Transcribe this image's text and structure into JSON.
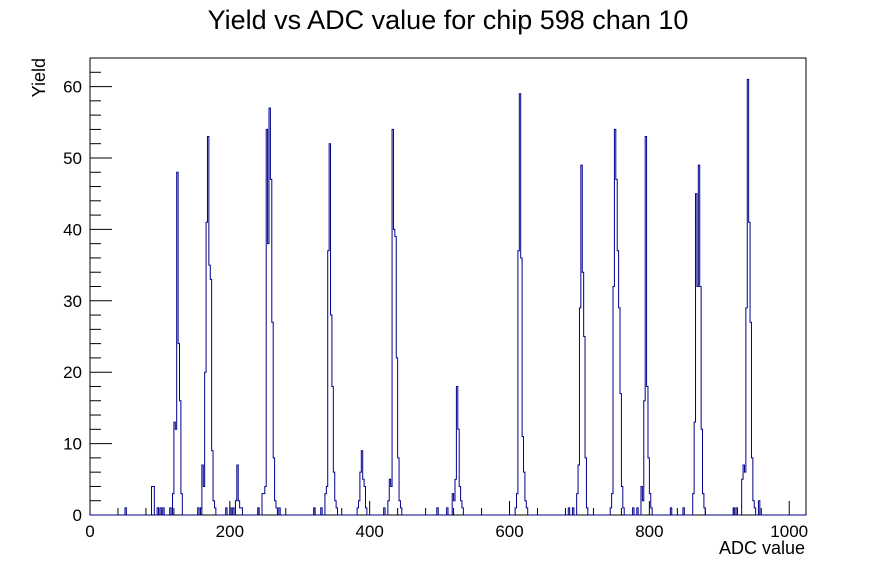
{
  "chart_data": {
    "type": "bar",
    "title": "Yield vs ADC value for chip 598 chan 10",
    "xlabel": "ADC value",
    "ylabel": "Yield",
    "xlim": [
      0,
      1024
    ],
    "ylim": [
      0,
      64
    ],
    "x_ticks": [
      0,
      200,
      400,
      600,
      800,
      1000
    ],
    "y_ticks": [
      0,
      10,
      20,
      30,
      40,
      50,
      60
    ],
    "grid": false,
    "legend": "none",
    "bin_width": 2,
    "color": "#00008b",
    "bins": [
      [
        50,
        1
      ],
      [
        88,
        4
      ],
      [
        90,
        4
      ],
      [
        96,
        1
      ],
      [
        100,
        1
      ],
      [
        104,
        1
      ],
      [
        114,
        1
      ],
      [
        118,
        3
      ],
      [
        120,
        13
      ],
      [
        122,
        12
      ],
      [
        124,
        48
      ],
      [
        126,
        24
      ],
      [
        128,
        16
      ],
      [
        130,
        3
      ],
      [
        154,
        1
      ],
      [
        158,
        1
      ],
      [
        160,
        7
      ],
      [
        162,
        4
      ],
      [
        164,
        20
      ],
      [
        166,
        41
      ],
      [
        168,
        53
      ],
      [
        170,
        35
      ],
      [
        172,
        33
      ],
      [
        174,
        9
      ],
      [
        176,
        2
      ],
      [
        178,
        1
      ],
      [
        194,
        1
      ],
      [
        200,
        1
      ],
      [
        204,
        1
      ],
      [
        208,
        2
      ],
      [
        210,
        7
      ],
      [
        212,
        2
      ],
      [
        214,
        1
      ],
      [
        216,
        1
      ],
      [
        240,
        1
      ],
      [
        246,
        3
      ],
      [
        248,
        3
      ],
      [
        250,
        4
      ],
      [
        252,
        54
      ],
      [
        254,
        38
      ],
      [
        256,
        57
      ],
      [
        258,
        47
      ],
      [
        260,
        27
      ],
      [
        262,
        8
      ],
      [
        264,
        2
      ],
      [
        266,
        1
      ],
      [
        270,
        1
      ],
      [
        320,
        1
      ],
      [
        330,
        1
      ],
      [
        336,
        3
      ],
      [
        338,
        4
      ],
      [
        340,
        37
      ],
      [
        342,
        52
      ],
      [
        344,
        28
      ],
      [
        346,
        18
      ],
      [
        348,
        6
      ],
      [
        350,
        2
      ],
      [
        352,
        1
      ],
      [
        382,
        1
      ],
      [
        384,
        2
      ],
      [
        386,
        6
      ],
      [
        388,
        9
      ],
      [
        390,
        5
      ],
      [
        392,
        4
      ],
      [
        394,
        1
      ],
      [
        420,
        1
      ],
      [
        426,
        2
      ],
      [
        428,
        5
      ],
      [
        430,
        4
      ],
      [
        432,
        54
      ],
      [
        434,
        40
      ],
      [
        436,
        39
      ],
      [
        438,
        22
      ],
      [
        440,
        8
      ],
      [
        442,
        2
      ],
      [
        444,
        1
      ],
      [
        496,
        1
      ],
      [
        510,
        1
      ],
      [
        518,
        3
      ],
      [
        520,
        2
      ],
      [
        522,
        5
      ],
      [
        524,
        18
      ],
      [
        526,
        12
      ],
      [
        528,
        4
      ],
      [
        530,
        2
      ],
      [
        532,
        1
      ],
      [
        608,
        1
      ],
      [
        610,
        3
      ],
      [
        612,
        37
      ],
      [
        614,
        59
      ],
      [
        616,
        36
      ],
      [
        618,
        11
      ],
      [
        620,
        6
      ],
      [
        622,
        2
      ],
      [
        624,
        1
      ],
      [
        684,
        1
      ],
      [
        690,
        1
      ],
      [
        696,
        3
      ],
      [
        698,
        7
      ],
      [
        700,
        29
      ],
      [
        702,
        49
      ],
      [
        704,
        34
      ],
      [
        706,
        25
      ],
      [
        708,
        8
      ],
      [
        710,
        1
      ],
      [
        744,
        1
      ],
      [
        746,
        3
      ],
      [
        748,
        32
      ],
      [
        750,
        54
      ],
      [
        752,
        47
      ],
      [
        754,
        37
      ],
      [
        756,
        29
      ],
      [
        758,
        17
      ],
      [
        760,
        4
      ],
      [
        762,
        1
      ],
      [
        776,
        1
      ],
      [
        782,
        1
      ],
      [
        788,
        4
      ],
      [
        790,
        2
      ],
      [
        792,
        16
      ],
      [
        794,
        53
      ],
      [
        796,
        18
      ],
      [
        798,
        8
      ],
      [
        800,
        3
      ],
      [
        802,
        1
      ],
      [
        830,
        1
      ],
      [
        848,
        1
      ],
      [
        862,
        3
      ],
      [
        864,
        13
      ],
      [
        866,
        45
      ],
      [
        868,
        32
      ],
      [
        870,
        49
      ],
      [
        872,
        32
      ],
      [
        874,
        12
      ],
      [
        876,
        3
      ],
      [
        878,
        1
      ],
      [
        920,
        1
      ],
      [
        924,
        1
      ],
      [
        932,
        5
      ],
      [
        934,
        7
      ],
      [
        936,
        6
      ],
      [
        938,
        29
      ],
      [
        940,
        61
      ],
      [
        942,
        41
      ],
      [
        944,
        27
      ],
      [
        946,
        8
      ],
      [
        948,
        2
      ],
      [
        950,
        1
      ],
      [
        956,
        2
      ]
    ]
  }
}
